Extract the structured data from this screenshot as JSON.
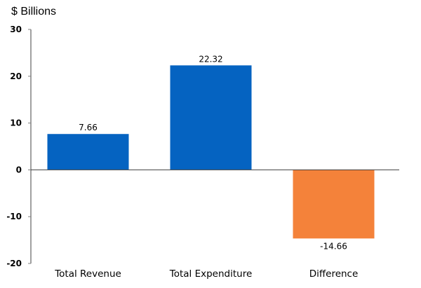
{
  "chart_data": {
    "type": "bar",
    "title": "",
    "unit_label": "$ Billions",
    "xlabel": "",
    "ylabel": "$ Billions",
    "categories": [
      "Total Revenue",
      "Total Expenditure",
      "Difference"
    ],
    "values": [
      7.66,
      22.32,
      -14.66
    ],
    "data_labels": [
      "7.66",
      "22.32",
      "-14.66"
    ],
    "colors": [
      "#0563C1",
      "#0563C1",
      "#F4823A"
    ],
    "ylim": [
      -20,
      30
    ],
    "yticks": [
      -20,
      -10,
      0,
      10,
      20,
      30
    ],
    "ytick_labels": [
      "-20",
      "-10",
      "0",
      "10",
      "20",
      "30"
    ],
    "grid": false,
    "legend": "none"
  }
}
